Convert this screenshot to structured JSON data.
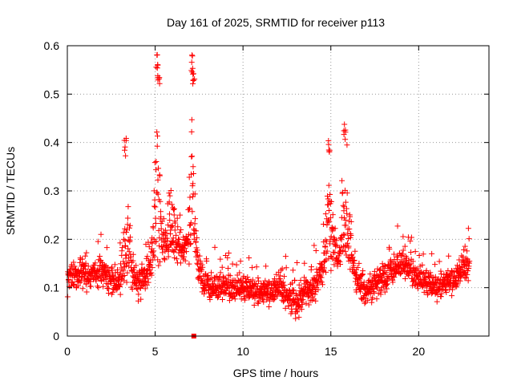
{
  "chart_data": {
    "type": "scatter",
    "title": "Day 161 of 2025, SRMTID for receiver p113",
    "xlabel": "GPS time / hours",
    "ylabel": "SRMTID / TECUs",
    "xlim": [
      0,
      24
    ],
    "ylim": [
      0,
      0.6
    ],
    "x_ticks": [
      0,
      5,
      10,
      15,
      20
    ],
    "x_tick_labels": [
      "0",
      "5",
      "10",
      "15",
      "20"
    ],
    "y_ticks": [
      0,
      0.1,
      0.2,
      0.3,
      0.4,
      0.5,
      0.6
    ],
    "y_tick_labels": [
      "0",
      "0.1",
      "0.2",
      "0.3",
      "0.4",
      "0.5",
      "0.6"
    ],
    "grid": true,
    "marker": "plus",
    "color": "#ff0000",
    "series": [
      {
        "name": "SRMTID",
        "summary_trend": {
          "x": [
            0,
            1,
            2,
            3,
            4,
            5,
            6,
            7,
            8,
            9,
            10,
            11,
            12,
            13,
            14,
            15,
            16,
            17,
            18,
            19,
            20,
            21,
            22,
            23
          ],
          "y": [
            0.12,
            0.13,
            0.13,
            0.1,
            0.11,
            0.14,
            0.18,
            0.17,
            0.1,
            0.1,
            0.1,
            0.09,
            0.1,
            0.07,
            0.1,
            0.16,
            0.13,
            0.09,
            0.12,
            0.15,
            0.12,
            0.1,
            0.12,
            0.15
          ]
        },
        "peaks": [
          {
            "x": 3.3,
            "y": 0.41
          },
          {
            "x": 5.1,
            "y": 0.585
          },
          {
            "x": 5.2,
            "y": 0.55
          },
          {
            "x": 7.1,
            "y": 0.585
          },
          {
            "x": 7.2,
            "y": 0.55
          },
          {
            "x": 14.9,
            "y": 0.41
          },
          {
            "x": 15.8,
            "y": 0.44
          }
        ],
        "outlier": {
          "x": 7.2,
          "y": 0.0
        }
      }
    ]
  }
}
